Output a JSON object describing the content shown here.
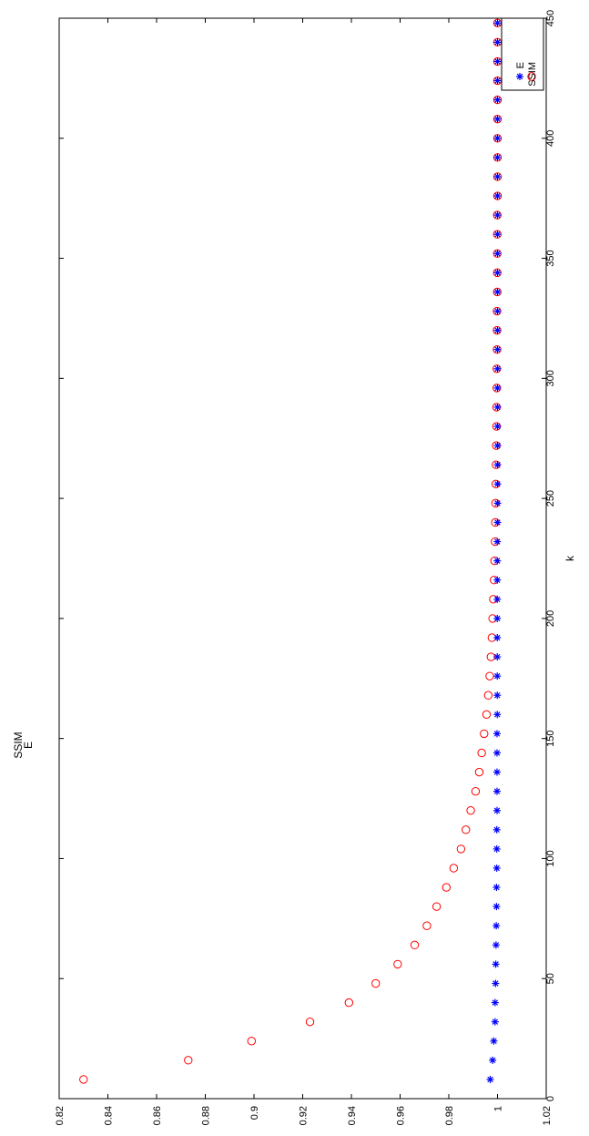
{
  "chart_data": {
    "type": "scatter",
    "orientation": "rotated-90",
    "xlabel": "k",
    "ylabel": "SSIM",
    "ylabel_secondary": "E",
    "xlim": [
      0,
      450
    ],
    "ylim": [
      0.82,
      1.02
    ],
    "x_ticks": [
      0,
      50,
      100,
      150,
      200,
      250,
      300,
      350,
      400,
      450
    ],
    "y_ticks": [
      0.82,
      0.84,
      0.86,
      0.88,
      0.9,
      0.92,
      0.94,
      0.96,
      0.98,
      1,
      1.02
    ],
    "y_tick_labels": [
      "0.82",
      "0.84",
      "0.86",
      "0.88",
      "0.9",
      "0.92",
      "0.94",
      "0.96",
      "0.98",
      "1",
      "1.02"
    ],
    "grid": false,
    "legend_position": "top-right",
    "series": [
      {
        "name": "E",
        "marker": "asterisk",
        "color": "#0000ff",
        "x": [
          8,
          16,
          24,
          32,
          40,
          48,
          56,
          64,
          72,
          80,
          88,
          96,
          104,
          112,
          120,
          128,
          136,
          144,
          152,
          160,
          168,
          176,
          184,
          192,
          200,
          208,
          216,
          224,
          232,
          240,
          248,
          256,
          264,
          272,
          280,
          288,
          296,
          304,
          312,
          320,
          328,
          336,
          344,
          352,
          360,
          368,
          376,
          384,
          392,
          400,
          408,
          416,
          424,
          432,
          440,
          448
        ],
        "values": [
          0.997,
          0.998,
          0.9985,
          0.999,
          0.999,
          0.9992,
          0.9993,
          0.9994,
          0.9995,
          0.9996,
          0.9996,
          0.9997,
          0.9997,
          0.9997,
          0.9998,
          0.9998,
          0.9998,
          0.9998,
          0.9998,
          0.9999,
          0.9999,
          0.9999,
          0.9999,
          0.9999,
          0.9999,
          0.9999,
          0.9999,
          0.9999,
          0.9999,
          1,
          1,
          1,
          1,
          1,
          1,
          1,
          1,
          1,
          1,
          1,
          1,
          1,
          1,
          1,
          1,
          1,
          1,
          1,
          1,
          1,
          1,
          1,
          1,
          1,
          1,
          1
        ]
      },
      {
        "name": "SSIM",
        "marker": "circle",
        "color": "#ff0000",
        "x": [
          8,
          16,
          24,
          32,
          40,
          48,
          56,
          64,
          72,
          80,
          88,
          96,
          104,
          112,
          120,
          128,
          136,
          144,
          152,
          160,
          168,
          176,
          184,
          192,
          200,
          208,
          216,
          224,
          232,
          240,
          248,
          256,
          264,
          272,
          280,
          288,
          296,
          304,
          312,
          320,
          328,
          336,
          344,
          352,
          360,
          368,
          376,
          384,
          392,
          400,
          408,
          416,
          424,
          432,
          440,
          448
        ],
        "values": [
          0.83,
          0.873,
          0.899,
          0.923,
          0.939,
          0.95,
          0.959,
          0.966,
          0.971,
          0.975,
          0.979,
          0.982,
          0.985,
          0.987,
          0.989,
          0.991,
          0.9925,
          0.9935,
          0.9945,
          0.9955,
          0.9962,
          0.9968,
          0.9973,
          0.9977,
          0.998,
          0.9983,
          0.9986,
          0.9988,
          0.999,
          0.9991,
          0.9992,
          0.9993,
          0.9994,
          0.9995,
          0.9996,
          0.9996,
          0.9997,
          0.9997,
          0.9998,
          0.9998,
          0.9998,
          0.9999,
          0.9999,
          0.9999,
          0.9999,
          0.9999,
          1,
          1,
          1,
          1,
          1,
          1,
          1,
          1,
          1,
          1
        ]
      }
    ]
  }
}
